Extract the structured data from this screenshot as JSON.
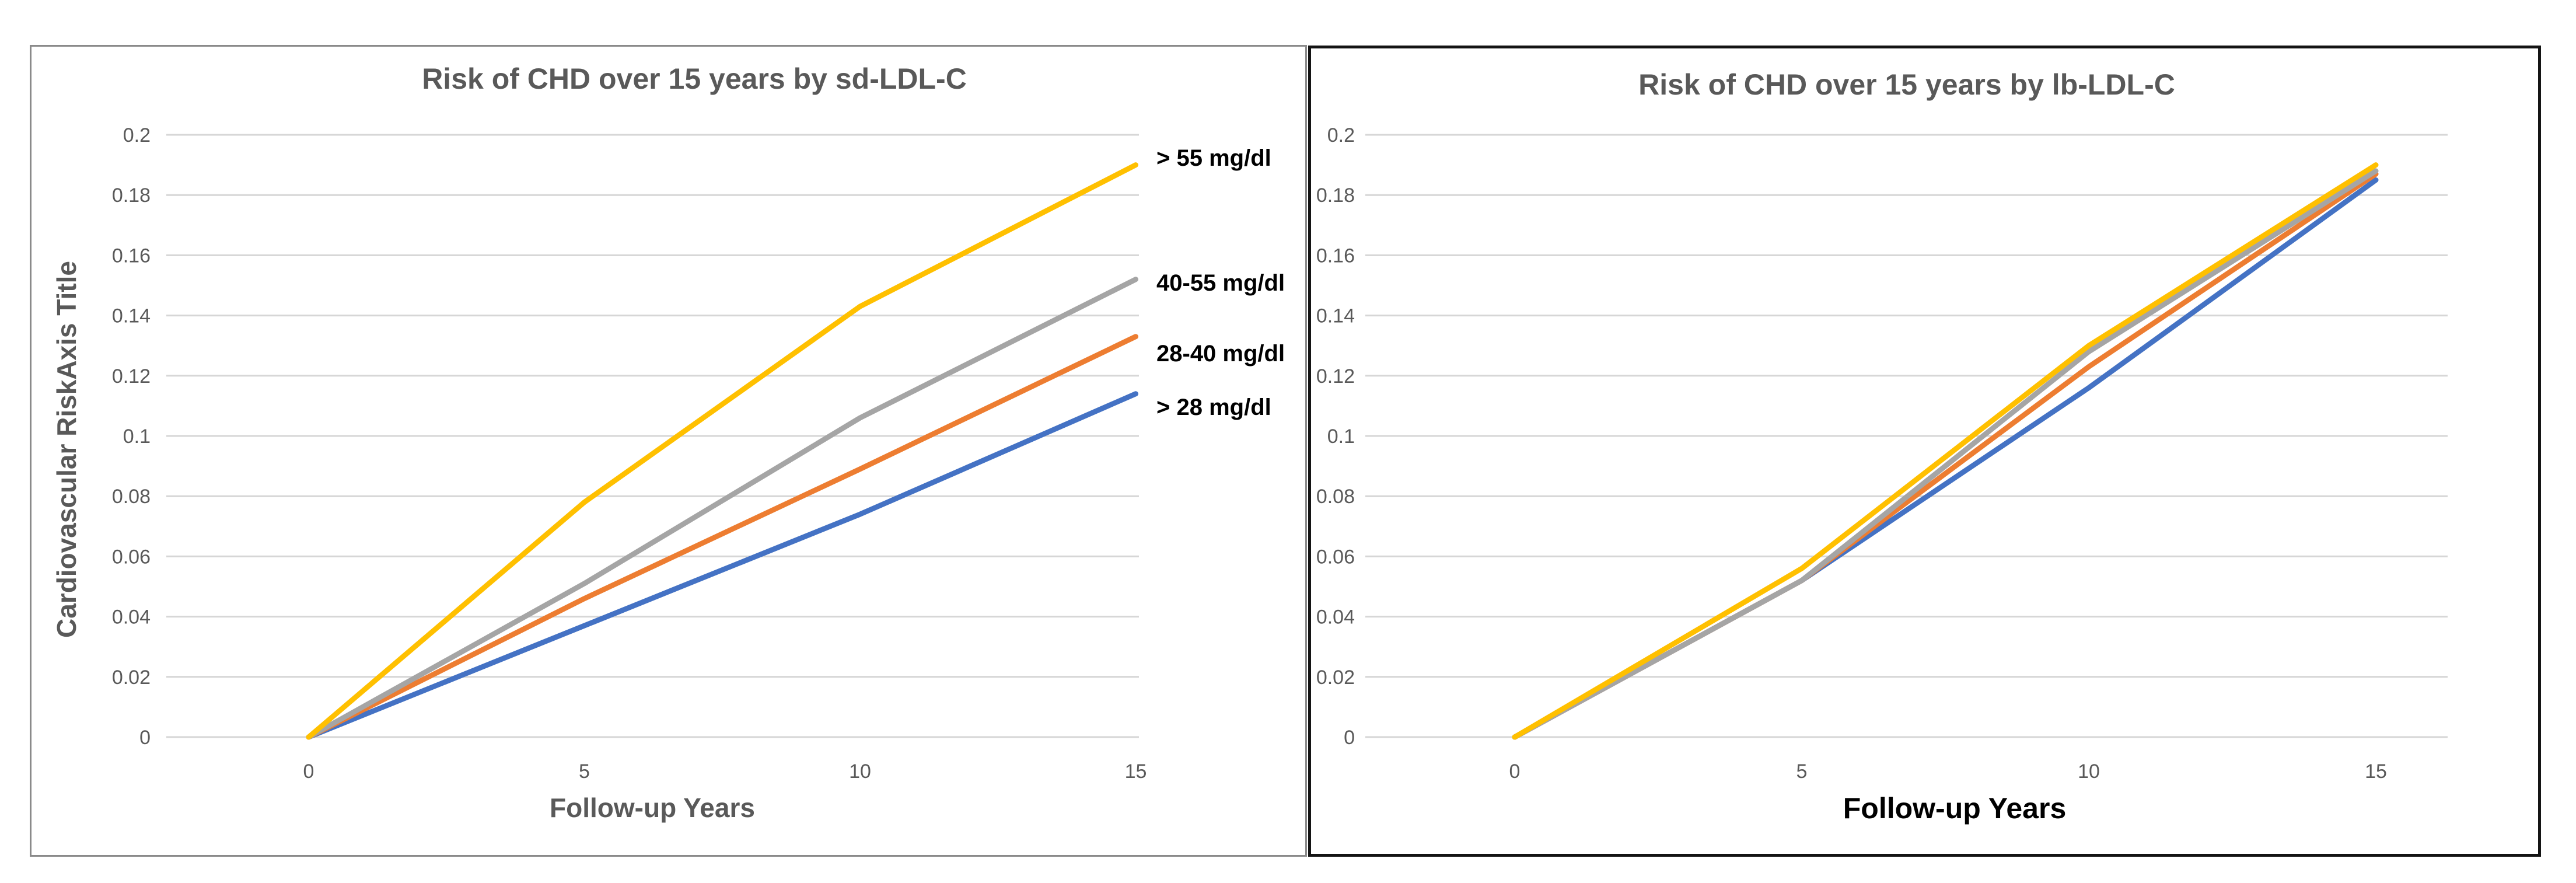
{
  "figure": {
    "description": "Two side-by-side Excel-style line charts comparing 15-year CHD risk",
    "background_color": "#ffffff",
    "left_panel_border_color": "#8a8a8a",
    "right_panel_border_color": "#141414",
    "gridline_color": "#d6d6d6",
    "tick_text_color": "#595959",
    "title_text_color": "#595959"
  },
  "chart_data": [
    {
      "type": "line",
      "title": "Risk of CHD over 15 years by sd-LDL-C",
      "xlabel": "Follow-up Years",
      "ylabel": "Cardiovascular RiskAxis Title",
      "x": [
        0,
        5,
        10,
        15
      ],
      "xticks": [
        0,
        5,
        10,
        15
      ],
      "yticks": [
        0,
        0.02,
        0.04,
        0.06,
        0.08,
        0.1,
        0.12,
        0.14,
        0.16,
        0.18,
        0.2
      ],
      "ylim": [
        0,
        0.2
      ],
      "grid": true,
      "legend_position": "end-of-line-labels",
      "series": [
        {
          "name": "> 28 mg/dl",
          "color": "#4472C4",
          "values": [
            0,
            0.037,
            0.074,
            0.114
          ]
        },
        {
          "name": "28-40 mg/dl",
          "color": "#ED7D31",
          "values": [
            0,
            0.046,
            0.089,
            0.133
          ]
        },
        {
          "name": "40-55 mg/dl",
          "color": "#A5A5A5",
          "values": [
            0,
            0.051,
            0.106,
            0.152
          ]
        },
        {
          "name": "> 55 mg/dl",
          "color": "#FFC000",
          "values": [
            0,
            0.078,
            0.143,
            0.19
          ]
        }
      ]
    },
    {
      "type": "line",
      "title": "Risk of CHD over 15 years by lb-LDL-C",
      "xlabel": "Follow-up Years",
      "ylabel": "",
      "x": [
        0,
        5,
        10,
        15
      ],
      "xticks": [
        0,
        5,
        10,
        15
      ],
      "yticks": [
        0,
        0.02,
        0.04,
        0.06,
        0.08,
        0.1,
        0.12,
        0.14,
        0.16,
        0.18,
        0.2
      ],
      "ylim": [
        0,
        0.2
      ],
      "grid": true,
      "legend_position": "none",
      "series": [
        {
          "name": "> 28 mg/dl",
          "color": "#4472C4",
          "values": [
            0,
            0.052,
            0.116,
            0.185
          ]
        },
        {
          "name": "28-40 mg/dl",
          "color": "#ED7D31",
          "values": [
            0,
            0.052,
            0.123,
            0.187
          ]
        },
        {
          "name": "40-55 mg/dl",
          "color": "#A5A5A5",
          "values": [
            0,
            0.052,
            0.128,
            0.188
          ]
        },
        {
          "name": "> 55 mg/dl",
          "color": "#FFC000",
          "values": [
            0,
            0.056,
            0.13,
            0.19
          ]
        }
      ]
    }
  ]
}
